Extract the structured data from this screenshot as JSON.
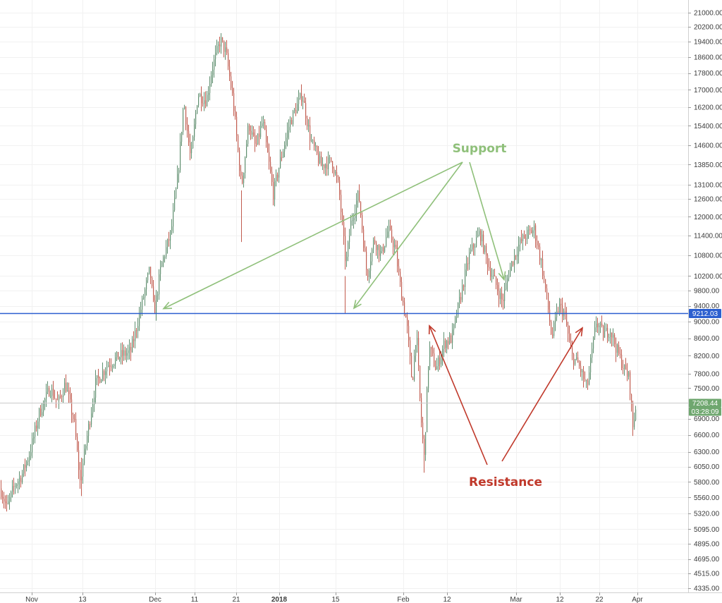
{
  "chart_data": {
    "type": "candlestick",
    "x_axis_labels": [
      "Nov",
      "13",
      "Dec",
      "11",
      "21",
      "2018",
      "15",
      "Feb",
      "12",
      "Mar",
      "12",
      "22",
      "Apr"
    ],
    "y_axis_ticks": [
      "21000.00",
      "20200.00",
      "19400.00",
      "18600.00",
      "17800.00",
      "17000.00",
      "16200.00",
      "15400.00",
      "14600.00",
      "13850.00",
      "13100.00",
      "12600.00",
      "12000.00",
      "11400.00",
      "10800.00",
      "10200.00",
      "9800.00",
      "9400.00",
      "9000.00",
      "8600.00",
      "8200.00",
      "7800.00",
      "7500.00",
      "6900.00",
      "6600.00",
      "6300.00",
      "6050.00",
      "5800.00",
      "5560.00",
      "5320.00",
      "5095.00",
      "4895.00",
      "4695.00",
      "4515.00",
      "4335.00"
    ],
    "y_axis_scale": "log",
    "y_range": [
      4300,
      21800
    ],
    "price_path": [
      {
        "x": 0,
        "price": 5700
      },
      {
        "x": 9,
        "price": 5400
      },
      {
        "x": 20,
        "price": 5750
      },
      {
        "x": 30,
        "price": 5900
      },
      {
        "x": 42,
        "price": 6300
      },
      {
        "x": 55,
        "price": 7000
      },
      {
        "x": 70,
        "price": 7500
      },
      {
        "x": 82,
        "price": 7200
      },
      {
        "x": 92,
        "price": 7600
      },
      {
        "x": 105,
        "price": 6800
      },
      {
        "x": 113,
        "price": 5800
      },
      {
        "x": 122,
        "price": 6500
      },
      {
        "x": 135,
        "price": 7600
      },
      {
        "x": 152,
        "price": 8000
      },
      {
        "x": 170,
        "price": 8200
      },
      {
        "x": 185,
        "price": 8300
      },
      {
        "x": 200,
        "price": 9400
      },
      {
        "x": 212,
        "price": 10400
      },
      {
        "x": 218,
        "price": 9200
      },
      {
        "x": 228,
        "price": 10500
      },
      {
        "x": 242,
        "price": 11500
      },
      {
        "x": 252,
        "price": 13500
      },
      {
        "x": 260,
        "price": 16500
      },
      {
        "x": 270,
        "price": 14000
      },
      {
        "x": 280,
        "price": 16800
      },
      {
        "x": 292,
        "price": 16500
      },
      {
        "x": 300,
        "price": 18000
      },
      {
        "x": 312,
        "price": 19500
      },
      {
        "x": 320,
        "price": 18800
      },
      {
        "x": 330,
        "price": 16500
      },
      {
        "x": 342,
        "price": 13000
      },
      {
        "x": 352,
        "price": 15500
      },
      {
        "x": 362,
        "price": 14500
      },
      {
        "x": 372,
        "price": 15600
      },
      {
        "x": 387,
        "price": 12800
      },
      {
        "x": 397,
        "price": 14000
      },
      {
        "x": 410,
        "price": 15500
      },
      {
        "x": 428,
        "price": 16800
      },
      {
        "x": 440,
        "price": 14800
      },
      {
        "x": 455,
        "price": 13800
      },
      {
        "x": 470,
        "price": 14000
      },
      {
        "x": 480,
        "price": 13000
      },
      {
        "x": 490,
        "price": 10500
      },
      {
        "x": 497,
        "price": 11800
      },
      {
        "x": 508,
        "price": 12800
      },
      {
        "x": 520,
        "price": 10200
      },
      {
        "x": 530,
        "price": 11300
      },
      {
        "x": 540,
        "price": 10800
      },
      {
        "x": 550,
        "price": 11600
      },
      {
        "x": 560,
        "price": 11000
      },
      {
        "x": 568,
        "price": 9800
      },
      {
        "x": 576,
        "price": 9000
      },
      {
        "x": 584,
        "price": 7600
      },
      {
        "x": 590,
        "price": 8800
      },
      {
        "x": 596,
        "price": 7000
      },
      {
        "x": 601,
        "price": 6200
      },
      {
        "x": 608,
        "price": 8400
      },
      {
        "x": 618,
        "price": 7900
      },
      {
        "x": 630,
        "price": 8500
      },
      {
        "x": 640,
        "price": 8600
      },
      {
        "x": 652,
        "price": 9600
      },
      {
        "x": 665,
        "price": 10800
      },
      {
        "x": 680,
        "price": 11500
      },
      {
        "x": 692,
        "price": 10500
      },
      {
        "x": 702,
        "price": 10000
      },
      {
        "x": 712,
        "price": 9500
      },
      {
        "x": 722,
        "price": 10400
      },
      {
        "x": 735,
        "price": 11100
      },
      {
        "x": 745,
        "price": 11400
      },
      {
        "x": 757,
        "price": 11600
      },
      {
        "x": 767,
        "price": 10600
      },
      {
        "x": 775,
        "price": 9600
      },
      {
        "x": 782,
        "price": 8600
      },
      {
        "x": 792,
        "price": 9400
      },
      {
        "x": 800,
        "price": 9200
      },
      {
        "x": 810,
        "price": 8200
      },
      {
        "x": 820,
        "price": 8000
      },
      {
        "x": 832,
        "price": 7500
      },
      {
        "x": 845,
        "price": 9000
      },
      {
        "x": 855,
        "price": 8700
      },
      {
        "x": 865,
        "price": 8800
      },
      {
        "x": 875,
        "price": 8300
      },
      {
        "x": 885,
        "price": 7900
      },
      {
        "x": 892,
        "price": 7700
      },
      {
        "x": 897,
        "price": 6750
      },
      {
        "x": 902,
        "price": 7208
      }
    ],
    "horizontal_line": {
      "price": 9212.03,
      "label": "9212.03",
      "color": "#2b5fcf"
    },
    "last_price": {
      "price": 7208.44,
      "label": "7208.44",
      "countdown": "03:28:09",
      "color": "#6fa76f"
    },
    "annotations": [
      {
        "text": "Support",
        "color": "#8fc07a",
        "arrows_to": [
          {
            "x_position": "Dec",
            "price": 9330
          },
          {
            "x_position": "15",
            "price": 9340
          },
          {
            "x_position": "Mar",
            "price": 10100
          }
        ]
      },
      {
        "text": "Resistance",
        "color": "#c0392b",
        "arrows_to": [
          {
            "x_position": "Feb",
            "price": 8900
          },
          {
            "x_position": "Mar",
            "price": 8850
          }
        ]
      }
    ],
    "up_color": "#5f8f6f",
    "down_color": "#c15b4e",
    "grid": true
  }
}
